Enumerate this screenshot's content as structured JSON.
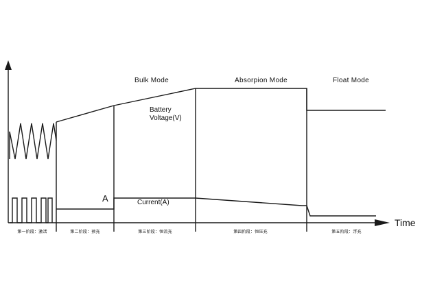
{
  "diagram": {
    "modes": {
      "bulk": "Bulk Mode",
      "absorption": "Absorpion Mode",
      "float": "Float Mode"
    },
    "signals": {
      "voltage_line1": "Battery",
      "voltage_line2": "Voltage(V)",
      "current": "Current(A)",
      "point_a": "A"
    },
    "x_axis_label": "Time",
    "phases": [
      "第一阶段：激活",
      "第二阶段：预充",
      "第三阶段：恒流充",
      "第四阶段：恒压充",
      "第五阶段：浮充"
    ],
    "colors": {
      "line": "#1a1a1a",
      "background": "#ffffff"
    }
  }
}
